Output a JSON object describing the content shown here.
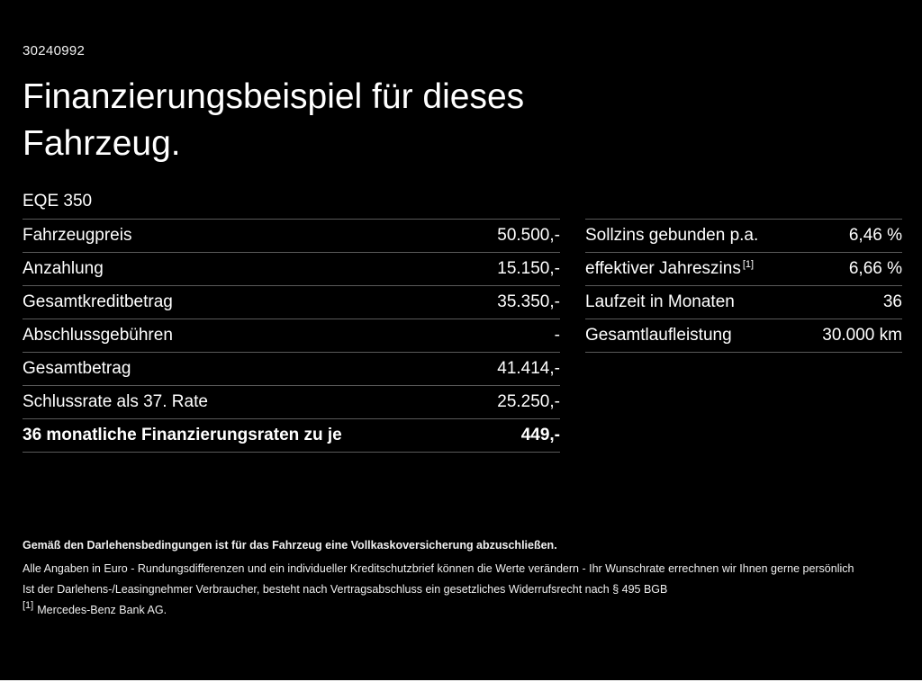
{
  "meta": {
    "doc_id": "30240992"
  },
  "header": {
    "title": "Finanzierungsbeispiel für dieses Fahrzeug.",
    "model": "EQE 350"
  },
  "tables": {
    "left": {
      "rows": [
        {
          "label": "Fahrzeugpreis",
          "value": "50.500,-"
        },
        {
          "label": "Anzahlung",
          "value": "15.150,-"
        },
        {
          "label": "Gesamtkreditbetrag",
          "value": "35.350,-"
        },
        {
          "label": "Abschlussgebühren",
          "value": "-"
        },
        {
          "label": "Gesamtbetrag",
          "value": "41.414,-"
        },
        {
          "label": "Schlussrate als 37. Rate",
          "value": "25.250,-"
        },
        {
          "label": "36 monatliche Finanzierungsraten zu je",
          "value": "449,-"
        }
      ]
    },
    "right": {
      "rows": [
        {
          "label": "Sollzins gebunden p.a.",
          "sup": "",
          "value": "6,46 %"
        },
        {
          "label": "effektiver Jahreszins",
          "sup": "[1]",
          "value": "6,66 %"
        },
        {
          "label": "Laufzeit in Monaten",
          "sup": "",
          "value": "36"
        },
        {
          "label": "Gesamtlaufleistung",
          "sup": "",
          "value": "30.000 km"
        }
      ]
    }
  },
  "footnotes": {
    "bold_line": "Gemäß den Darlehensbedingungen ist für das Fahrzeug eine Vollkaskoversicherung abzuschließen.",
    "line2": "Alle Angaben in Euro - Rundungsdifferenzen und ein individueller Kreditschutzbrief können die Werte verändern - Ihr Wunschrate errechnen wir Ihnen gerne persönlich",
    "line3": "Ist der Darlehens-/Leasingnehmer Verbraucher, besteht nach Vertragsabschluss ein gesetzliches Widerrufsrecht nach § 495 BGB",
    "source_sup": "[1]",
    "source_text": "Mercedes-Benz Bank AG."
  }
}
